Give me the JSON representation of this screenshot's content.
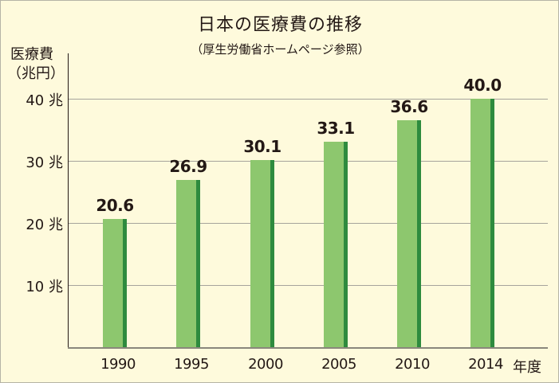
{
  "chart_data": {
    "type": "bar",
    "title": "日本の医療費の推移",
    "subtitle": "（厚生労働省ホームページ参照）",
    "ylabel": "医療費（兆円）",
    "ylabel_lines": [
      "医療費",
      "（兆円）"
    ],
    "xlabel": "年度",
    "categories": [
      "1990",
      "1995",
      "2000",
      "2005",
      "2010",
      "2014"
    ],
    "values": [
      20.6,
      26.9,
      30.1,
      33.1,
      36.6,
      40.0
    ],
    "value_labels": [
      "20.6",
      "26.9",
      "30.1",
      "33.1",
      "36.6",
      "40.0"
    ],
    "yticks": [
      {
        "value": 10,
        "label": "10 兆"
      },
      {
        "value": 20,
        "label": "20 兆"
      },
      {
        "value": 30,
        "label": "30 兆"
      },
      {
        "value": 40,
        "label": "40 兆"
      }
    ],
    "ylim": [
      0,
      40
    ],
    "grid": true,
    "legend": null,
    "colors": {
      "bar": "#8dc76e",
      "bar_edge": "#2e8b3e",
      "background": "#fefadc"
    }
  }
}
